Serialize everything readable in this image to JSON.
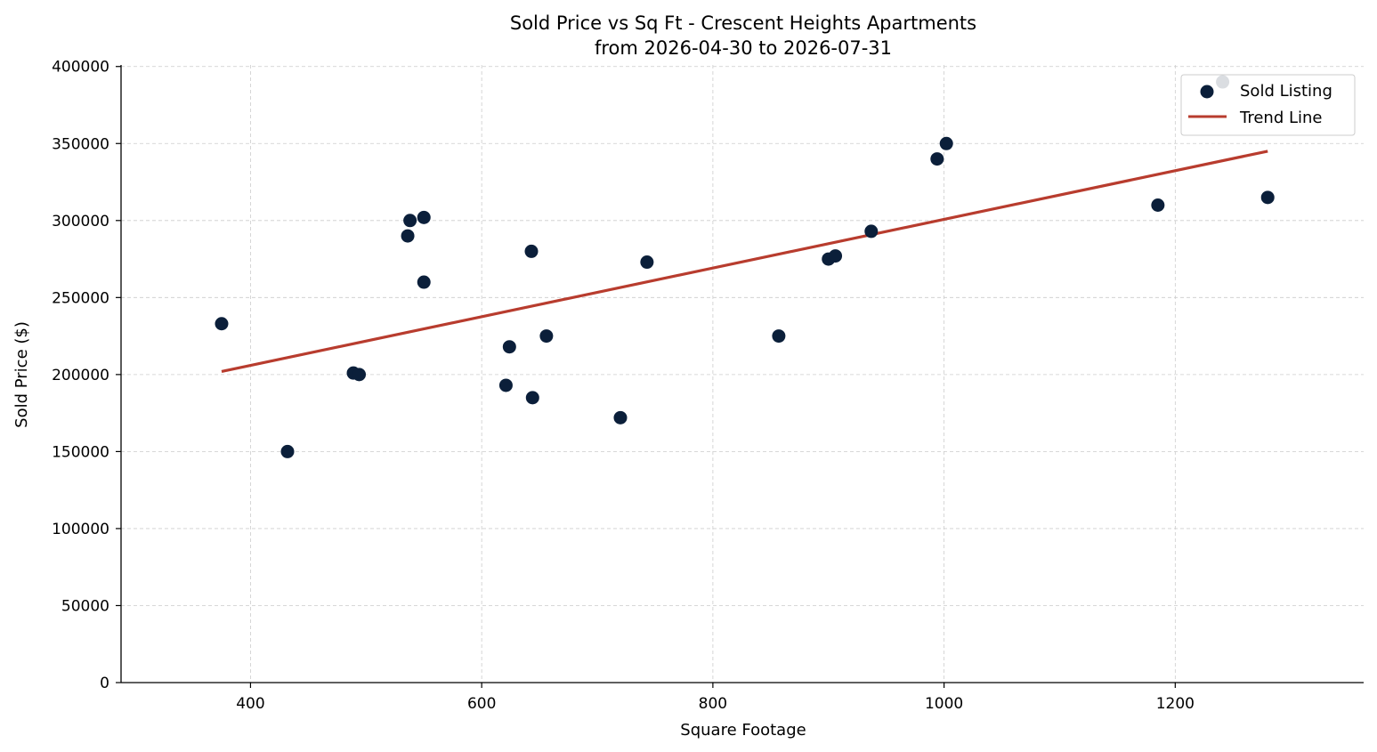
{
  "chart_data": {
    "type": "scatter",
    "title": "Sold Price vs Sq Ft - Crescent Heights Apartments",
    "subtitle": "from 2026-04-30 to 2026-07-31",
    "xlabel": "Square Footage",
    "ylabel": "Sold Price ($)",
    "xlim": [
      288,
      1363
    ],
    "ylim": [
      0,
      401000
    ],
    "xticks": [
      400,
      600,
      800,
      1000,
      1200
    ],
    "yticks": [
      0,
      50000,
      100000,
      150000,
      200000,
      250000,
      300000,
      350000,
      400000
    ],
    "xtick_labels": [
      "400",
      "600",
      "800",
      "1000",
      "1200"
    ],
    "ytick_labels": [
      "0",
      "50000",
      "100000",
      "150000",
      "200000",
      "250000",
      "300000",
      "350000",
      "400000"
    ],
    "grid": true,
    "legend_position": "top-right",
    "series": [
      {
        "name": "Sold Listing",
        "kind": "scatter",
        "color": "#0b1f3a",
        "points": [
          {
            "x": 375,
            "y": 233000
          },
          {
            "x": 432,
            "y": 150000
          },
          {
            "x": 489,
            "y": 201000
          },
          {
            "x": 494,
            "y": 200000
          },
          {
            "x": 536,
            "y": 290000
          },
          {
            "x": 538,
            "y": 300000
          },
          {
            "x": 550,
            "y": 302000
          },
          {
            "x": 550,
            "y": 260000
          },
          {
            "x": 621,
            "y": 193000
          },
          {
            "x": 624,
            "y": 218000
          },
          {
            "x": 643,
            "y": 280000
          },
          {
            "x": 644,
            "y": 185000
          },
          {
            "x": 656,
            "y": 225000
          },
          {
            "x": 720,
            "y": 172000
          },
          {
            "x": 743,
            "y": 273000
          },
          {
            "x": 857,
            "y": 225000
          },
          {
            "x": 900,
            "y": 275000
          },
          {
            "x": 906,
            "y": 277000
          },
          {
            "x": 937,
            "y": 293000
          },
          {
            "x": 994,
            "y": 340000
          },
          {
            "x": 1002,
            "y": 350000
          },
          {
            "x": 1185,
            "y": 310000
          },
          {
            "x": 1241,
            "y": 390000
          },
          {
            "x": 1280,
            "y": 315000
          }
        ]
      },
      {
        "name": "Trend Line",
        "kind": "line",
        "color": "#b83c2e",
        "points": [
          {
            "x": 375,
            "y": 202000
          },
          {
            "x": 1280,
            "y": 345000
          }
        ]
      }
    ]
  }
}
